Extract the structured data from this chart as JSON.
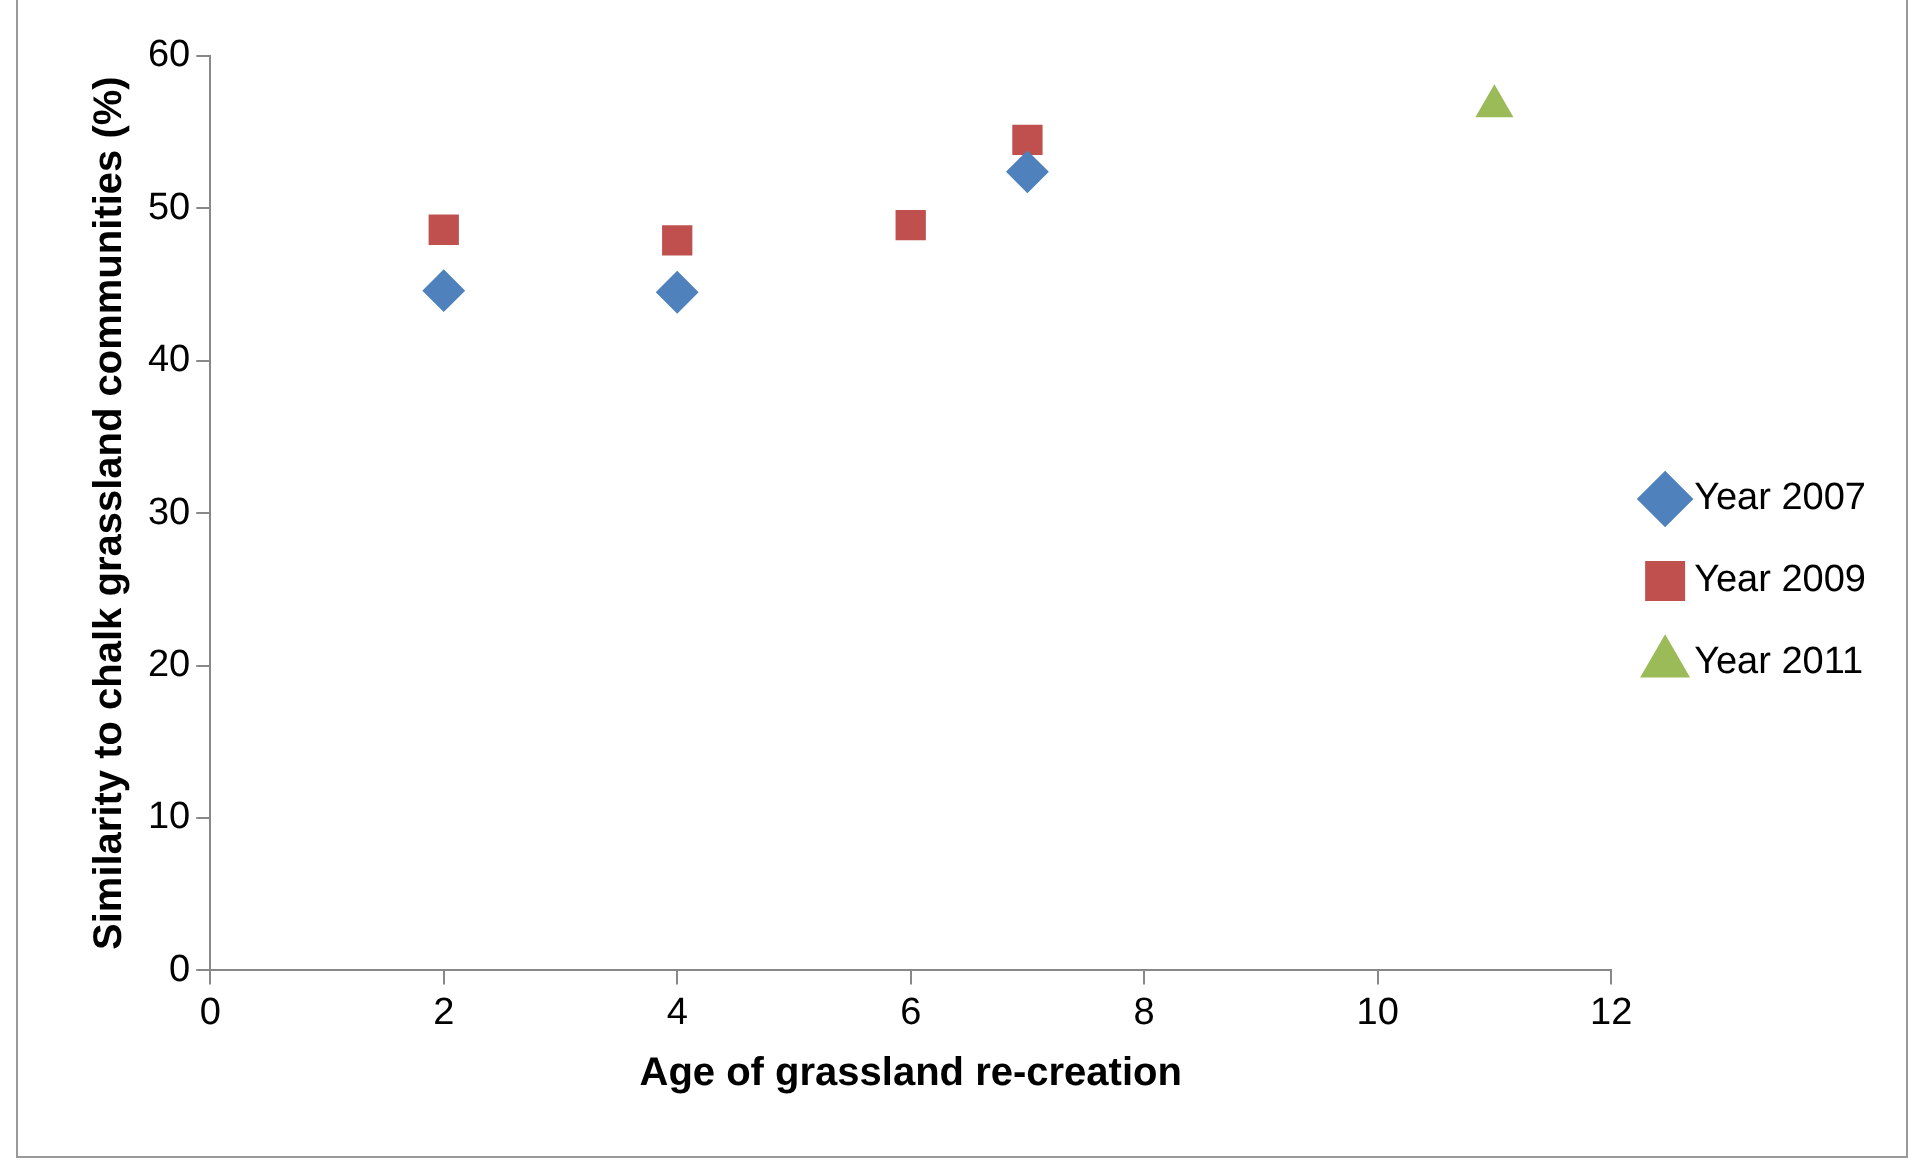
{
  "chart_data": {
    "type": "scatter",
    "xlabel": "Age of grassland re-creation",
    "ylabel": "Similarity to chalk grassland communities (%)",
    "xlim": [
      0,
      12
    ],
    "xticks": [
      0,
      2,
      4,
      6,
      8,
      10,
      12
    ],
    "ylim": [
      0,
      60
    ],
    "yticks": [
      0,
      10,
      20,
      30,
      40,
      50,
      60
    ],
    "grid": false,
    "legend": "right",
    "series": [
      {
        "name": "Year 2007",
        "color": "#4f81bd",
        "marker": "diamond",
        "x": [
          2,
          4,
          7
        ],
        "values": [
          44.6,
          44.5,
          52.4
        ]
      },
      {
        "name": "Year 2009",
        "color": "#c0504d",
        "marker": "square",
        "x": [
          2,
          4,
          6,
          7
        ],
        "values": [
          48.6,
          47.9,
          48.9,
          54.5
        ]
      },
      {
        "name": "Year 2011",
        "color": "#9bbb59",
        "marker": "triangle",
        "x": [
          11
        ],
        "values": [
          56.7
        ]
      }
    ]
  }
}
